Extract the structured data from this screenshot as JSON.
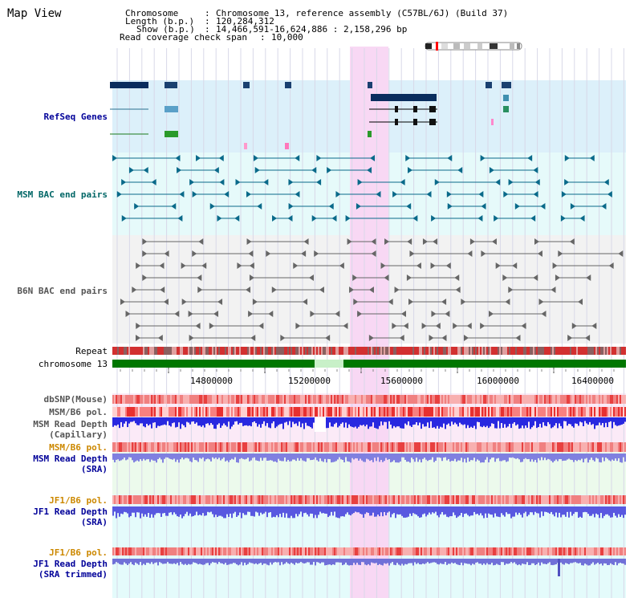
{
  "page_title": "Map View",
  "header": {
    "chromosome_key": "Chromosome",
    "chromosome_val": "Chromosome 13, reference assembly (C57BL/6J) (Build 37)",
    "length_key": "Length (b.p.)",
    "length_val": "120,284,312",
    "show_key": "Show (b.p.)",
    "show_val": "14,466,591-16,624,886 : 2,158,296 bp",
    "coverage_key": "Read coverage check span",
    "coverage_val": "10,000"
  },
  "tracks": {
    "refseq": "RefSeq Genes",
    "msm_bac": "MSM BAC end pairs",
    "b6n_bac": "B6N BAC end pairs",
    "repeat": "Repeat",
    "chromosome": "chromosome 13",
    "dbsnp": "dbSNP(Mouse)",
    "msm_b6_pol": "MSM/B6 pol.",
    "msm_read_depth_cap_1": "MSM Read Depth",
    "msm_read_depth_cap_2": "(Capillary)",
    "msm_b6_pol_2": "MSM/B6 pol.",
    "msm_read_depth_sra_1": "MSM Read Depth",
    "msm_read_depth_sra_2": "(SRA)",
    "jf1_b6_pol": "JF1/B6 pol.",
    "jf1_read_depth_sra_1": "JF1 Read Depth",
    "jf1_read_depth_sra_2": "(SRA)",
    "jf1_b6_pol_2": "JF1/B6 pol.",
    "jf1_read_depth_trim_1": "JF1 Read Depth",
    "jf1_read_depth_trim_2": "(SRA trimmed)"
  },
  "axis_ticks": [
    "14800000",
    "15200000",
    "15600000",
    "16000000",
    "16400000"
  ],
  "colors": {
    "refseq_bg": "#dcf0fa",
    "msm_bg": "#e6fafa",
    "b6n_bg": "#f2f2f2",
    "highlight": "#f8d8f4",
    "label_blue": "#000099",
    "label_teal": "#006666",
    "label_gray": "#555555",
    "label_orange": "#cc8800",
    "chrom_green": "#007700"
  }
}
